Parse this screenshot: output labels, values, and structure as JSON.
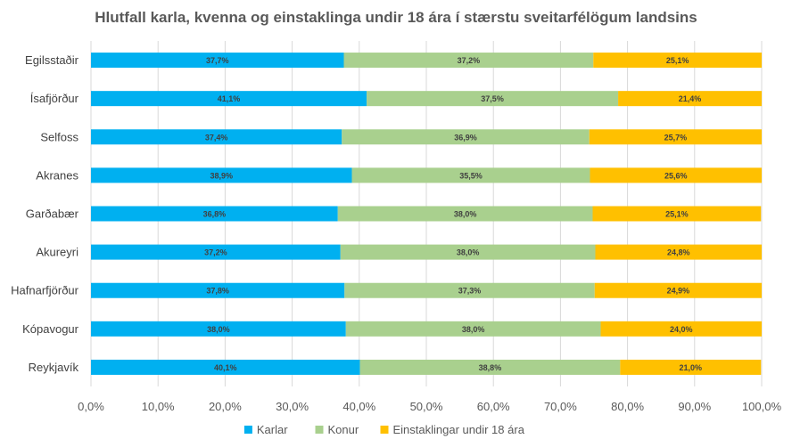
{
  "chart_data": {
    "type": "bar",
    "orientation": "horizontal",
    "stacked": true,
    "title": "Hlutfall karla, kvenna og einstaklinga undir 18 ára í stærstu sveitarfélögum landsins",
    "categories": [
      "Egilsstaðir",
      "Ísafjörður",
      "Selfoss",
      "Akranes",
      "Garðabær",
      "Akureyri",
      "Hafnarfjörður",
      "Kópavogur",
      "Reykjavík"
    ],
    "series": [
      {
        "name": "Karlar",
        "color": "#00B0F0",
        "values": [
          37.7,
          41.1,
          37.4,
          38.9,
          36.8,
          37.2,
          37.8,
          38.0,
          40.1
        ],
        "labels": [
          "37,7%",
          "41,1%",
          "37,4%",
          "38,9%",
          "36,8%",
          "37,2%",
          "37,8%",
          "38,0%",
          "40,1%"
        ]
      },
      {
        "name": "Konur",
        "color": "#A9D08E",
        "values": [
          37.2,
          37.5,
          36.9,
          35.5,
          38.0,
          38.0,
          37.3,
          38.0,
          38.8
        ],
        "labels": [
          "37,2%",
          "37,5%",
          "36,9%",
          "35,5%",
          "38,0%",
          "38,0%",
          "37,3%",
          "38,0%",
          "38,8%"
        ]
      },
      {
        "name": "Einstaklingar undir 18 ára",
        "color": "#FFC000",
        "values": [
          25.1,
          21.4,
          25.7,
          25.6,
          25.1,
          24.8,
          24.9,
          24.0,
          21.0
        ],
        "labels": [
          "25,1%",
          "21,4%",
          "25,7%",
          "25,6%",
          "25,1%",
          "24,8%",
          "24,9%",
          "24,0%",
          "21,0%"
        ]
      }
    ],
    "xlim": [
      0,
      100
    ],
    "x_ticks": [
      0,
      10,
      20,
      30,
      40,
      50,
      60,
      70,
      80,
      90,
      100
    ],
    "x_tick_labels": [
      "0,0%",
      "10,0%",
      "20,0%",
      "30,0%",
      "40,0%",
      "50,0%",
      "60,0%",
      "70,0%",
      "80,0%",
      "90,0%",
      "100,0%"
    ],
    "grid": true,
    "legend": "bottom"
  }
}
